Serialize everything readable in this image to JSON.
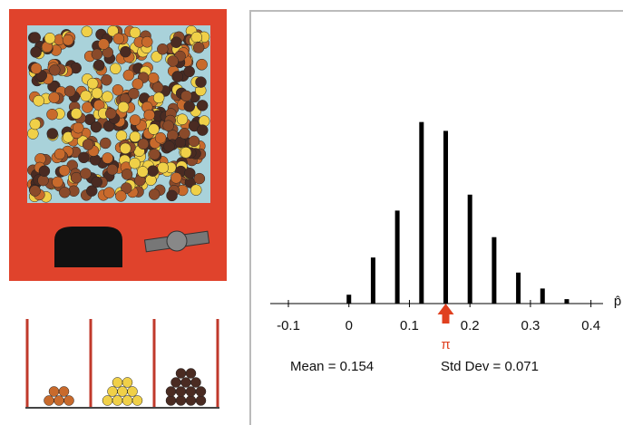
{
  "chart_data": {
    "type": "bar",
    "x_label": "p̂",
    "x": [
      0,
      0.04,
      0.08,
      0.12,
      0.16,
      0.2,
      0.24,
      0.28,
      0.32,
      0.36
    ],
    "values": [
      10,
      52,
      105,
      205,
      195,
      123,
      75,
      35,
      17,
      5
    ],
    "color": "#000000",
    "xlim": [
      -0.13,
      0.42
    ],
    "xticks": [
      -0.1,
      0,
      0.1,
      0.2,
      0.3,
      0.4
    ],
    "ylim": [
      0,
      220
    ],
    "marker": {
      "value": 0.16,
      "label": "π",
      "color": "#e0401f"
    },
    "annotations": [
      "Mean = 0.154",
      "Std Dev = 0.071"
    ]
  }
}
